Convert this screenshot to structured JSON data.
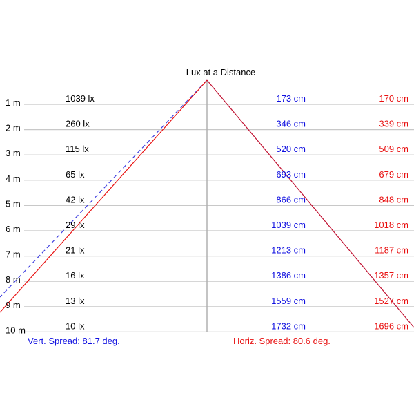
{
  "title": "Lux at a Distance",
  "colors": {
    "vertical": "#1010e0",
    "horizontal": "#e81010",
    "text": "#000000",
    "grid": "#c0c0c0"
  },
  "rows": [
    {
      "distance": "1 m",
      "lux": "1039 lx",
      "vert": "173 cm",
      "horiz": "170 cm"
    },
    {
      "distance": "2 m",
      "lux": "260 lx",
      "vert": "346 cm",
      "horiz": "339 cm"
    },
    {
      "distance": "3 m",
      "lux": "115 lx",
      "vert": "520 cm",
      "horiz": "509 cm"
    },
    {
      "distance": "4 m",
      "lux": "65 lx",
      "vert": "693 cm",
      "horiz": "679 cm"
    },
    {
      "distance": "5 m",
      "lux": "42 lx",
      "vert": "866 cm",
      "horiz": "848 cm"
    },
    {
      "distance": "6 m",
      "lux": "29 lx",
      "vert": "1039 cm",
      "horiz": "1018 cm"
    },
    {
      "distance": "7 m",
      "lux": "21 lx",
      "vert": "1213 cm",
      "horiz": "1187 cm"
    },
    {
      "distance": "8 m",
      "lux": "16 lx",
      "vert": "1386 cm",
      "horiz": "1357 cm"
    },
    {
      "distance": "9 m",
      "lux": "13 lx",
      "vert": "1559 cm",
      "horiz": "1527 cm"
    },
    {
      "distance": "10 m",
      "lux": "10 lx",
      "vert": "1732 cm",
      "horiz": "1696 cm"
    }
  ],
  "vert_spread": "Vert. Spread: 81.7 deg.",
  "horiz_spread": "Horiz. Spread: 80.6 deg."
}
